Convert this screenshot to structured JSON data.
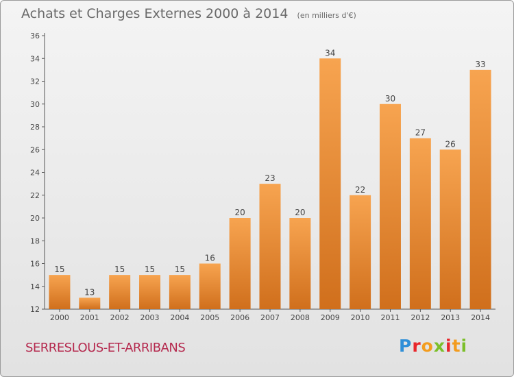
{
  "title": "Achats et Charges Externes 2000 à 2014",
  "subtitle": "(en milliers d'€)",
  "commune": "SERRESLOUS-ET-ARRIBANS",
  "logo": {
    "letters": [
      "P",
      "r",
      "o",
      "x",
      "i",
      "t",
      "i"
    ],
    "colors": [
      "#2f8fd8",
      "#e8262b",
      "#f39c1f",
      "#7bbf2a",
      "#e8262b",
      "#f39c1f",
      "#7bbf2a"
    ]
  },
  "colors": {
    "bar_light": "#f7a450",
    "bar_dark": "#d06f1c",
    "axis": "#555555",
    "label": "#444444"
  },
  "chart_data": {
    "type": "bar",
    "categories": [
      "2000",
      "2001",
      "2002",
      "2003",
      "2004",
      "2005",
      "2006",
      "2007",
      "2008",
      "2009",
      "2010",
      "2011",
      "2012",
      "2013",
      "2014"
    ],
    "values": [
      15,
      13,
      15,
      15,
      15,
      16,
      20,
      23,
      20,
      34,
      22,
      30,
      27,
      26,
      33
    ],
    "ylim": [
      12,
      36
    ],
    "yticks": [
      12,
      14,
      16,
      18,
      20,
      22,
      24,
      26,
      28,
      30,
      32,
      34,
      36
    ],
    "grid": false,
    "data_labels": true
  }
}
